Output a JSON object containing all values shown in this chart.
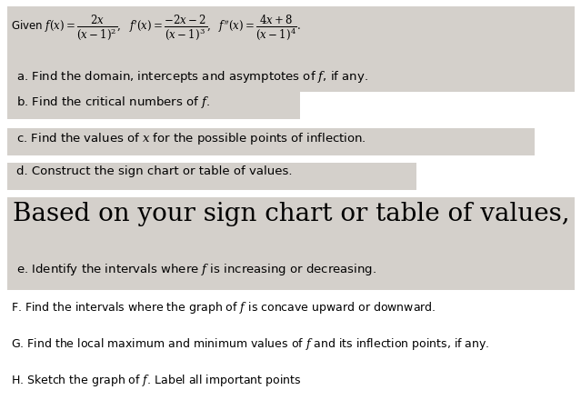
{
  "bg_color": "#ffffff",
  "box_color": "#d4d0cb",
  "title_fontsize": 9.0,
  "body_fontsize": 9.5,
  "big_fontsize": 20,
  "small_fontsize": 9.0,
  "line_formula": "Given $f(x) = \\dfrac{2x}{(x-1)^2},\\ \\ f^{\\prime}(x) = \\dfrac{-2x-2}{(x-1)^3},\\ \\ f^{\\prime\\prime}(x) = \\dfrac{4x+8}{(x-1)^4}.$",
  "line_a": "a. Find the domain, intercepts and asymptotes of $f$, if any.",
  "line_b": "b. Find the critical numbers of $f$.",
  "line_c": "c. Find the values of $x$ for the possible points of inflection.",
  "line_d": "d. Construct the sign chart or table of values.",
  "line_big": "Based on your sign chart or table of values,",
  "line_e": "e. Identify the intervals where $f$ is increasing or decreasing.",
  "line_F": "F. Find the intervals where the graph of $f$ is concave upward or downward.",
  "line_G": "G. Find the local maximum and minimum values of $f$ and its inflection points, if any.",
  "line_H": "H. Sketch the graph of $f$. Label all important points"
}
